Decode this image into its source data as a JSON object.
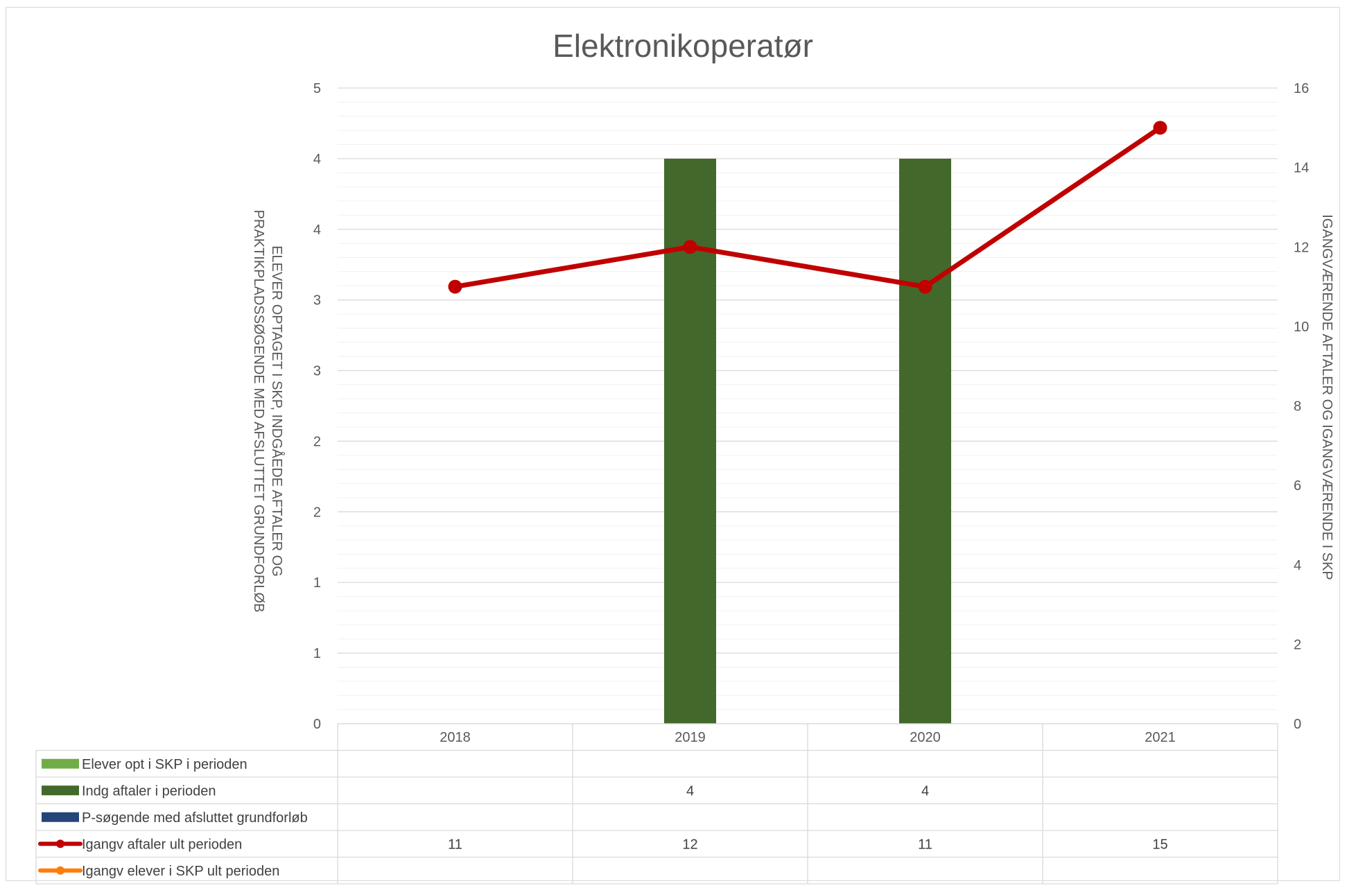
{
  "chart_data": {
    "type": "bar",
    "title": "Elektronikoperatør",
    "categories": [
      "2018",
      "2019",
      "2020",
      "2021"
    ],
    "y_left": {
      "label_line1": "ELEVER OPTAGET I SKP, INDGÅEDE AFTALER OG",
      "label_line2": "PRAKTIKPLADSSØGENDE MED AFSLUTTET GRUNDFORLØB",
      "ylim": [
        0,
        4.5
      ],
      "tick_labels": [
        "0",
        "1",
        "1",
        "2",
        "2",
        "3",
        "3",
        "4",
        "4",
        "5"
      ]
    },
    "y_right": {
      "label": "IGANGVÆRENDE AFTALER OG IGANGVÆRENDE I SKP",
      "ylim": [
        0,
        16
      ],
      "tick_labels": [
        "0",
        "2",
        "4",
        "6",
        "8",
        "10",
        "12",
        "14",
        "16"
      ]
    },
    "grid": true,
    "legend": "data-table",
    "series": [
      {
        "name": "Elever opt i SKP i perioden",
        "type": "bar",
        "axis": "left",
        "color": "#70ad47",
        "values": [
          null,
          null,
          null,
          null
        ],
        "labels": [
          "",
          "",
          "",
          ""
        ]
      },
      {
        "name": "Indg aftaler i perioden",
        "type": "bar",
        "axis": "left",
        "color": "#43682b",
        "values": [
          null,
          4,
          4,
          null
        ],
        "labels": [
          "",
          "4",
          "4",
          ""
        ]
      },
      {
        "name": "P-søgende med afsluttet grundforløb",
        "type": "bar",
        "axis": "left",
        "color": "#264478",
        "values": [
          null,
          null,
          null,
          null
        ],
        "labels": [
          "",
          "",
          "",
          ""
        ]
      },
      {
        "name": "Igangv aftaler ult perioden",
        "type": "line",
        "axis": "right",
        "color": "#c00000",
        "values": [
          11,
          12,
          11,
          15
        ],
        "labels": [
          "11",
          "12",
          "11",
          "15"
        ]
      },
      {
        "name": "Igangv elever i SKP ult perioden",
        "type": "line",
        "axis": "right",
        "color": "#ff7c0a",
        "values": [
          null,
          null,
          null,
          null
        ],
        "labels": [
          "",
          "",
          "",
          ""
        ]
      }
    ]
  }
}
